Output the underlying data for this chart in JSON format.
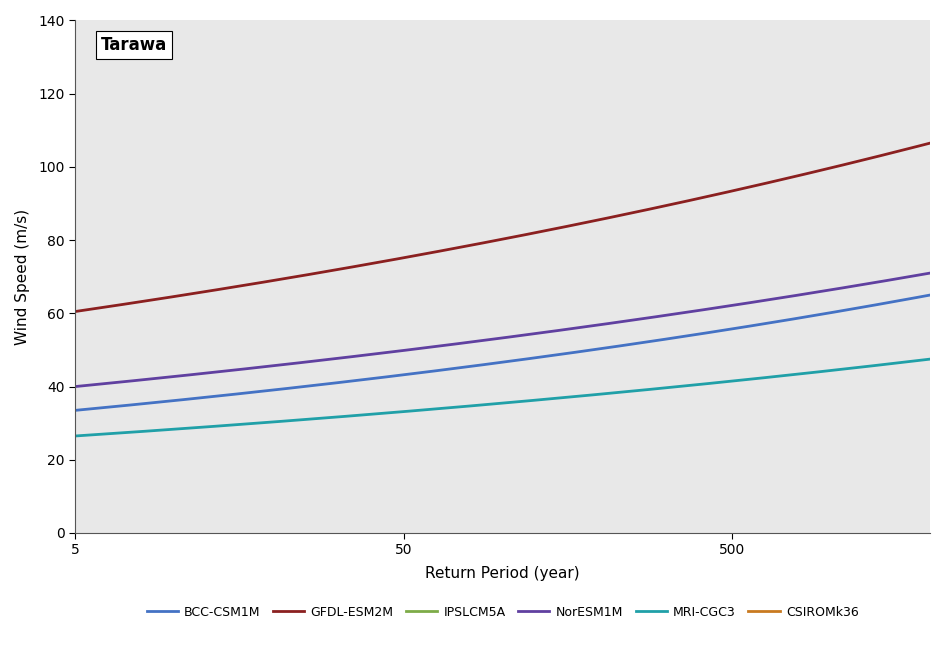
{
  "title": "Tarawa",
  "xlabel": "Return Period (year)",
  "ylabel": "Wind Speed (m/s)",
  "xlim_log": [
    5,
    2000
  ],
  "ylim": [
    0,
    140
  ],
  "yticks": [
    0,
    20,
    40,
    60,
    80,
    100,
    120,
    140
  ],
  "xticks": [
    5,
    50,
    500
  ],
  "background_color": "#e8e8e8",
  "plot_bg": "#e8e8e8",
  "series": [
    {
      "label": "BCC-CSM1M",
      "color": "#4472c4",
      "y5": 33.5,
      "y2000": 65.0,
      "hidden": false
    },
    {
      "label": "GFDL-ESM2M",
      "color": "#8b2020",
      "y5": 60.5,
      "y2000": 106.5,
      "hidden": false
    },
    {
      "label": "IPSLCM5A",
      "color": "#7dab48",
      "y5": null,
      "y2000": null,
      "hidden": true
    },
    {
      "label": "NorESM1M",
      "color": "#6040a0",
      "y5": 40.0,
      "y2000": 71.0,
      "hidden": false
    },
    {
      "label": "MRI-CGC3",
      "color": "#20a0a8",
      "y5": 26.5,
      "y2000": 47.5,
      "hidden": false
    },
    {
      "label": "CSIROMk36",
      "color": "#c97a20",
      "y5": null,
      "y2000": null,
      "hidden": true
    }
  ],
  "linewidth": 2.0,
  "legend_fontsize": 9,
  "axis_fontsize": 11,
  "title_fontsize": 12,
  "tick_fontsize": 10
}
